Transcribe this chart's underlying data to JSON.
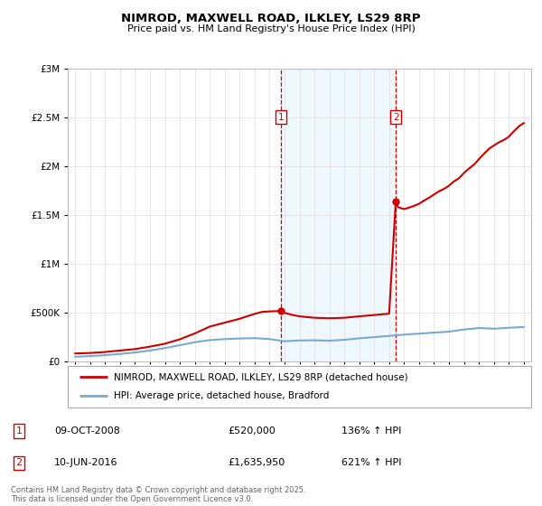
{
  "title": "NIMROD, MAXWELL ROAD, ILKLEY, LS29 8RP",
  "subtitle": "Price paid vs. HM Land Registry's House Price Index (HPI)",
  "ylim": [
    0,
    3000000
  ],
  "xlim_start": 1994.5,
  "xlim_end": 2025.5,
  "yticks": [
    0,
    500000,
    1000000,
    1500000,
    2000000,
    2500000,
    3000000
  ],
  "grid_color": "#dddddd",
  "point1_x": 2008.77,
  "point1_y": 520000,
  "point1_date": "09-OCT-2008",
  "point1_price": "£520,000",
  "point1_hpi": "136% ↑ HPI",
  "point2_x": 2016.44,
  "point2_y": 1635950,
  "point2_date": "10-JUN-2016",
  "point2_price": "£1,635,950",
  "point2_hpi": "621% ↑ HPI",
  "shade_color": "#ddeeff",
  "shade_alpha": 0.45,
  "red_line_color": "#cc0000",
  "blue_line_color": "#7aabcf",
  "legend_label_red": "NIMROD, MAXWELL ROAD, ILKLEY, LS29 8RP (detached house)",
  "legend_label_blue": "HPI: Average price, detached house, Bradford",
  "footer": "Contains HM Land Registry data © Crown copyright and database right 2025.\nThis data is licensed under the Open Government Licence v3.0.",
  "red_line_x": [
    1995.0,
    1996.0,
    1997.0,
    1997.5,
    1998.0,
    1999.0,
    2000.0,
    2001.0,
    2002.0,
    2003.0,
    2004.0,
    2005.0,
    2006.0,
    2007.0,
    2007.5,
    2008.0,
    2008.77,
    2009.0,
    2009.5,
    2010.0,
    2011.0,
    2012.0,
    2013.0,
    2014.0,
    2015.0,
    2016.0,
    2016.44,
    2016.6,
    2017.0,
    2017.3,
    2017.6,
    2018.0,
    2018.3,
    2018.7,
    2019.0,
    2019.3,
    2019.7,
    2020.0,
    2020.3,
    2020.7,
    2021.0,
    2021.3,
    2021.7,
    2022.0,
    2022.3,
    2022.7,
    2023.0,
    2023.3,
    2023.7,
    2024.0,
    2024.3,
    2024.7,
    2025.0
  ],
  "red_line_y": [
    85000,
    90000,
    100000,
    108000,
    115000,
    130000,
    155000,
    185000,
    230000,
    290000,
    360000,
    400000,
    440000,
    490000,
    510000,
    515000,
    520000,
    500000,
    480000,
    465000,
    450000,
    445000,
    450000,
    465000,
    478000,
    492000,
    1635950,
    1580000,
    1560000,
    1575000,
    1590000,
    1615000,
    1645000,
    1680000,
    1710000,
    1740000,
    1770000,
    1800000,
    1840000,
    1880000,
    1930000,
    1970000,
    2020000,
    2070000,
    2120000,
    2180000,
    2210000,
    2240000,
    2270000,
    2300000,
    2350000,
    2410000,
    2440000
  ],
  "blue_line_x": [
    1995.0,
    1996.0,
    1997.0,
    1998.0,
    1999.0,
    2000.0,
    2001.0,
    2002.0,
    2003.0,
    2004.0,
    2005.0,
    2006.0,
    2007.0,
    2008.0,
    2009.0,
    2010.0,
    2011.0,
    2012.0,
    2013.0,
    2014.0,
    2015.0,
    2016.0,
    2017.0,
    2018.0,
    2019.0,
    2020.0,
    2021.0,
    2022.0,
    2023.0,
    2024.0,
    2025.0
  ],
  "blue_line_y": [
    52000,
    58000,
    68000,
    80000,
    95000,
    115000,
    140000,
    170000,
    200000,
    222000,
    232000,
    238000,
    242000,
    232000,
    210000,
    218000,
    220000,
    215000,
    225000,
    240000,
    252000,
    265000,
    278000,
    288000,
    298000,
    308000,
    330000,
    345000,
    338000,
    348000,
    355000
  ]
}
